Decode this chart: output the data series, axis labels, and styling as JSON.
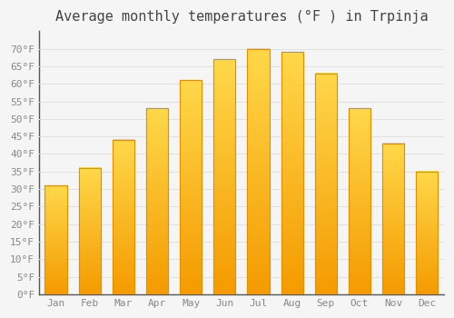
{
  "title": "Average monthly temperatures (°F ) in Trpinja",
  "months": [
    "Jan",
    "Feb",
    "Mar",
    "Apr",
    "May",
    "Jun",
    "Jul",
    "Aug",
    "Sep",
    "Oct",
    "Nov",
    "Dec"
  ],
  "values": [
    31,
    36,
    44,
    53,
    61,
    67,
    70,
    69,
    63,
    53,
    43,
    35
  ],
  "bar_color_top": "#FFD84A",
  "bar_color_bottom": "#F59B00",
  "bar_edge_color": "#E09000",
  "ylim": [
    0,
    75
  ],
  "yticks": [
    0,
    5,
    10,
    15,
    20,
    25,
    30,
    35,
    40,
    45,
    50,
    55,
    60,
    65,
    70
  ],
  "ytick_labels": [
    "0°F",
    "5°F",
    "10°F",
    "15°F",
    "20°F",
    "25°F",
    "30°F",
    "35°F",
    "40°F",
    "45°F",
    "50°F",
    "55°F",
    "60°F",
    "65°F",
    "70°F"
  ],
  "background_color": "#f5f5f5",
  "plot_bg_color": "#f5f5f5",
  "grid_color": "#e0e0e0",
  "title_fontsize": 11,
  "tick_fontsize": 8,
  "font_family": "monospace",
  "tick_color": "#888888",
  "title_color": "#444444",
  "spine_color": "#555555"
}
